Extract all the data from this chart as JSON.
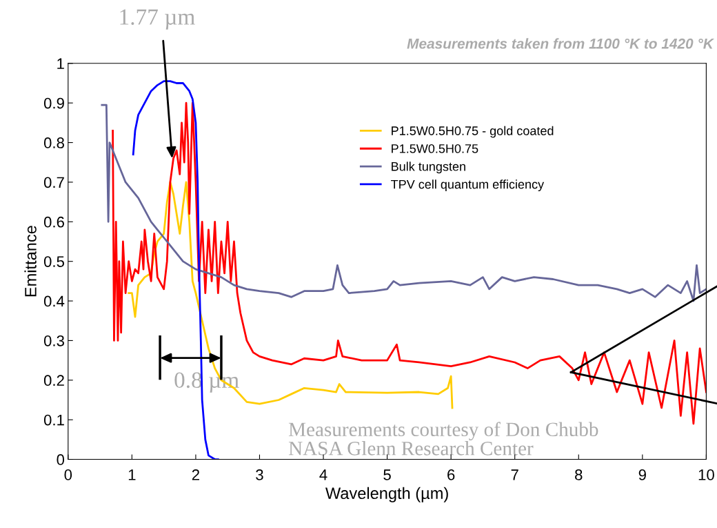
{
  "chart_data": {
    "type": "line",
    "title": "Measurements taken from 1100 °K to 1420 °K",
    "xlabel": "Wavelength (µm)",
    "ylabel": "Emittance",
    "xlim": [
      0,
      10
    ],
    "xticks": [
      0,
      1,
      2,
      3,
      4,
      5,
      6,
      7,
      8,
      9,
      10
    ],
    "ylim": [
      0,
      1
    ],
    "yticks": [
      0,
      0.1,
      0.2,
      0.3,
      0.4,
      0.5,
      0.6,
      0.7,
      0.8,
      0.9,
      1
    ],
    "grid": false,
    "legend": "top",
    "marker": "none",
    "line_style": "solid",
    "annotations": [
      {
        "text": "1.77 µm",
        "x": 1.63,
        "y": 0.76
      },
      "0.8 µm",
      "Measurements courtesy of Don Chubb\nNASA Glenn Research Center"
    ],
    "series": [
      {
        "name": "P1.5W0.5H0.75 - gold coated",
        "color": "#ffcc00",
        "x": [
          0.95,
          1.0,
          1.05,
          1.1,
          1.2,
          1.3,
          1.35,
          1.4,
          1.5,
          1.55,
          1.6,
          1.65,
          1.7,
          1.75,
          1.8,
          1.85,
          1.9,
          1.95,
          2.0,
          2.1,
          2.2,
          2.3,
          2.4,
          2.6,
          2.8,
          3.0,
          3.3,
          3.5,
          3.7,
          4.0,
          4.2,
          4.25,
          4.35,
          5.0,
          5.5,
          5.8,
          5.95,
          6.0,
          6.02
        ],
        "values": [
          0.42,
          0.42,
          0.36,
          0.44,
          0.46,
          0.47,
          0.52,
          0.55,
          0.57,
          0.65,
          0.7,
          0.67,
          0.62,
          0.57,
          0.64,
          0.7,
          0.6,
          0.45,
          0.42,
          0.35,
          0.28,
          0.23,
          0.2,
          0.18,
          0.145,
          0.14,
          0.15,
          0.165,
          0.18,
          0.175,
          0.17,
          0.19,
          0.17,
          0.168,
          0.17,
          0.165,
          0.18,
          0.21,
          0.13
        ]
      },
      {
        "name": "P1.5W0.5H0.75",
        "color": "#ff0000",
        "x": [
          0.7,
          0.72,
          0.75,
          0.78,
          0.8,
          0.83,
          0.86,
          0.9,
          0.95,
          1.0,
          1.05,
          1.1,
          1.15,
          1.18,
          1.2,
          1.25,
          1.3,
          1.35,
          1.4,
          1.5,
          1.55,
          1.6,
          1.65,
          1.7,
          1.75,
          1.78,
          1.82,
          1.85,
          1.88,
          1.9,
          1.95,
          2.0,
          2.05,
          2.1,
          2.15,
          2.2,
          2.25,
          2.3,
          2.35,
          2.4,
          2.45,
          2.5,
          2.55,
          2.6,
          2.65,
          2.7,
          2.8,
          2.9,
          3.0,
          3.2,
          3.5,
          3.7,
          4.0,
          4.2,
          4.23,
          4.3,
          4.6,
          5.0,
          5.15,
          5.2,
          5.5,
          6.0,
          6.3,
          6.6,
          7.0,
          7.2,
          7.4,
          7.7,
          7.9,
          8.0,
          8.1,
          8.2,
          8.4,
          8.6,
          8.8,
          9.0,
          9.1,
          9.3,
          9.5,
          9.6,
          9.7,
          9.8,
          9.9,
          10.0
        ],
        "values": [
          0.83,
          0.3,
          0.6,
          0.3,
          0.5,
          0.32,
          0.55,
          0.42,
          0.5,
          0.45,
          0.48,
          0.47,
          0.55,
          0.48,
          0.58,
          0.5,
          0.45,
          0.57,
          0.46,
          0.43,
          0.5,
          0.7,
          0.76,
          0.78,
          0.72,
          0.85,
          0.75,
          0.9,
          0.8,
          0.62,
          0.9,
          0.7,
          0.45,
          0.6,
          0.42,
          0.58,
          0.45,
          0.6,
          0.42,
          0.55,
          0.47,
          0.6,
          0.45,
          0.55,
          0.42,
          0.37,
          0.3,
          0.27,
          0.26,
          0.25,
          0.24,
          0.255,
          0.25,
          0.26,
          0.3,
          0.26,
          0.25,
          0.25,
          0.29,
          0.25,
          0.245,
          0.235,
          0.245,
          0.26,
          0.245,
          0.23,
          0.25,
          0.26,
          0.23,
          0.2,
          0.27,
          0.19,
          0.27,
          0.17,
          0.25,
          0.14,
          0.27,
          0.13,
          0.3,
          0.11,
          0.27,
          0.09,
          0.28,
          0.17
        ]
      },
      {
        "name": "Bulk tungsten",
        "color": "#666699",
        "x": [
          0.53,
          0.6,
          0.62,
          0.63,
          0.65,
          0.7,
          0.8,
          0.9,
          1.0,
          1.1,
          1.2,
          1.3,
          1.4,
          1.5,
          1.6,
          1.7,
          1.8,
          1.9,
          2.0,
          2.2,
          2.4,
          2.6,
          2.8,
          3.0,
          3.3,
          3.5,
          3.7,
          4.0,
          4.15,
          4.22,
          4.3,
          4.4,
          4.8,
          5.0,
          5.1,
          5.2,
          5.5,
          6.0,
          6.3,
          6.5,
          6.6,
          6.8,
          7.0,
          7.3,
          7.6,
          8.0,
          8.3,
          8.6,
          8.8,
          9.0,
          9.2,
          9.4,
          9.6,
          9.7,
          9.8,
          9.85,
          9.9,
          10.0
        ],
        "values": [
          0.895,
          0.895,
          0.7,
          0.6,
          0.8,
          0.78,
          0.74,
          0.7,
          0.68,
          0.66,
          0.63,
          0.6,
          0.58,
          0.56,
          0.54,
          0.52,
          0.5,
          0.49,
          0.48,
          0.47,
          0.46,
          0.44,
          0.43,
          0.425,
          0.42,
          0.41,
          0.425,
          0.425,
          0.43,
          0.49,
          0.44,
          0.42,
          0.425,
          0.43,
          0.45,
          0.44,
          0.445,
          0.45,
          0.44,
          0.46,
          0.43,
          0.46,
          0.45,
          0.46,
          0.455,
          0.44,
          0.44,
          0.43,
          0.42,
          0.43,
          0.41,
          0.44,
          0.42,
          0.45,
          0.4,
          0.49,
          0.42,
          0.43
        ]
      },
      {
        "name": "TPV cell quantum efficiency",
        "color": "#0000ff",
        "x": [
          1.02,
          1.05,
          1.1,
          1.2,
          1.3,
          1.4,
          1.5,
          1.6,
          1.7,
          1.8,
          1.9,
          1.95,
          2.0,
          2.03,
          2.05,
          2.08,
          2.1,
          2.15,
          2.2,
          2.3,
          2.35
        ],
        "values": [
          0.77,
          0.83,
          0.87,
          0.9,
          0.93,
          0.945,
          0.955,
          0.955,
          0.95,
          0.95,
          0.93,
          0.91,
          0.85,
          0.7,
          0.5,
          0.3,
          0.15,
          0.05,
          0.01,
          0.0,
          0.0
        ]
      }
    ]
  }
}
